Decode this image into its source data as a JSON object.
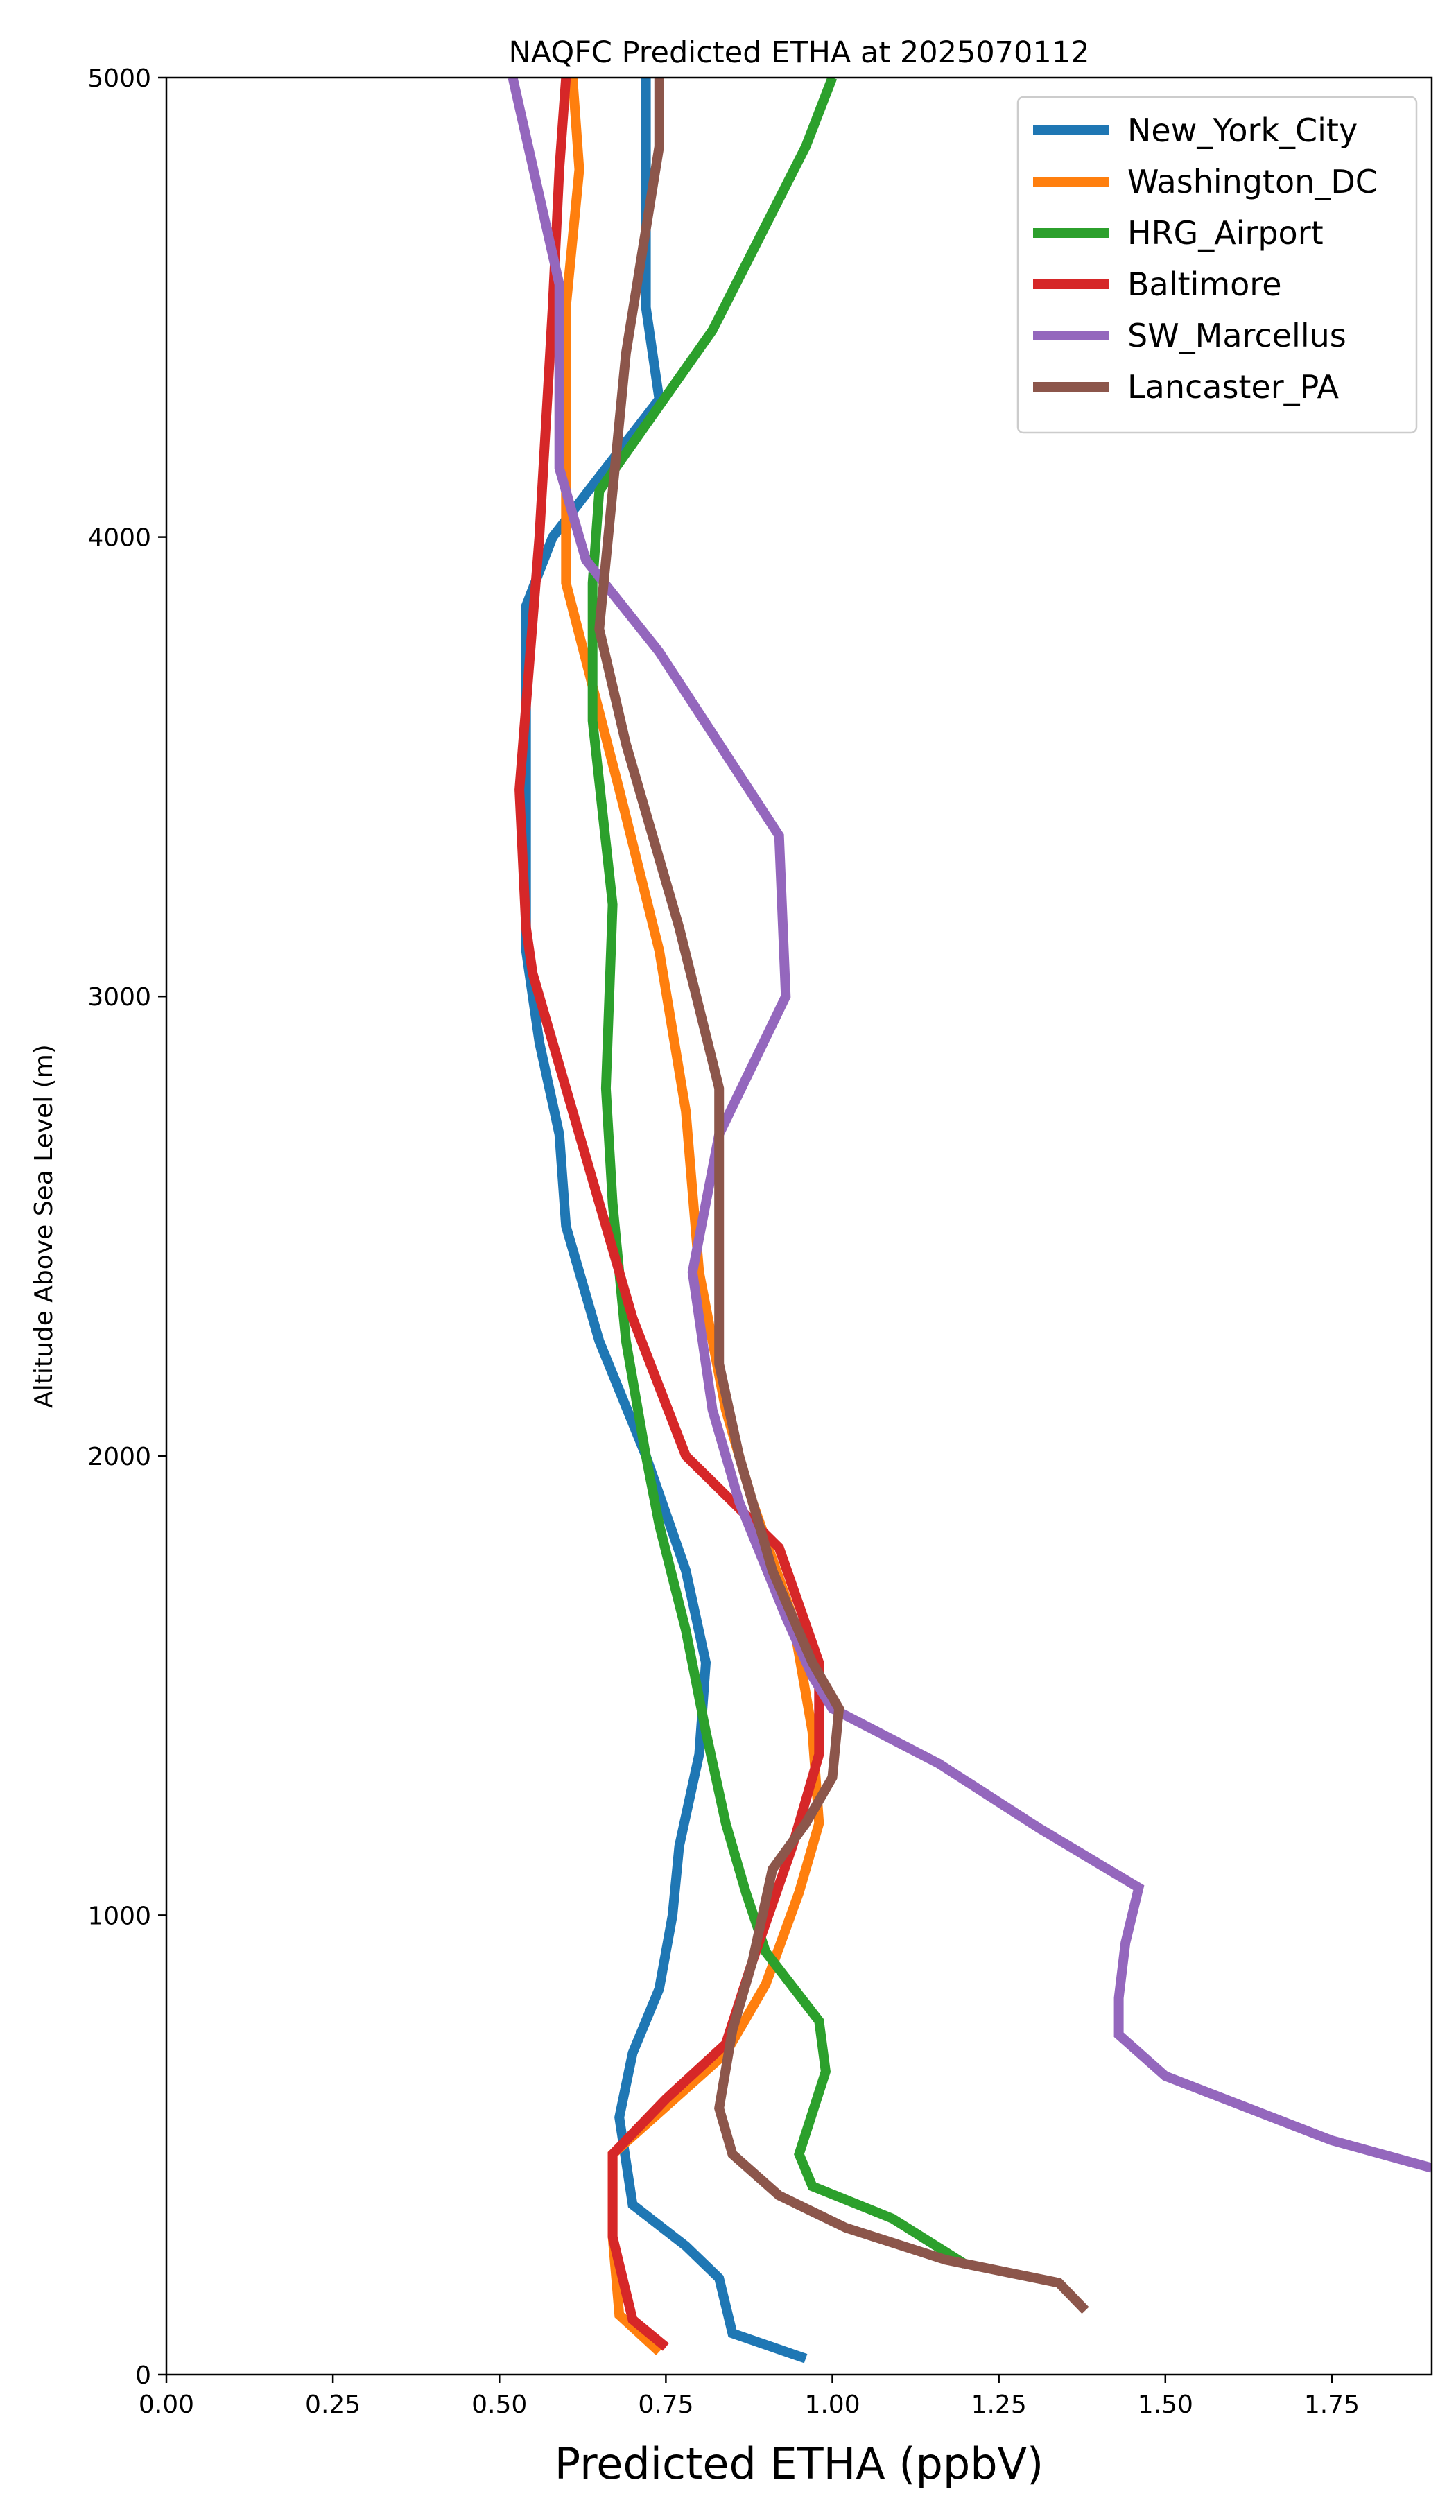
{
  "chart_data": {
    "type": "line",
    "title": "NAQFC Predicted ETHA at 2025070112",
    "xlabel": "Predicted ETHA (ppbV)",
    "ylabel": "Altitude Above Sea Level (m)",
    "xlim": [
      0,
      1.9
    ],
    "ylim": [
      0,
      5000
    ],
    "xticks": [
      "0.00",
      "0.25",
      "0.50",
      "0.75",
      "1.00",
      "1.25",
      "1.50",
      "1.75"
    ],
    "yticks": [
      "0",
      "1000",
      "2000",
      "3000",
      "4000",
      "5000"
    ],
    "grid": false,
    "legend_position": "top-right",
    "series": [
      {
        "name": "New_York_City",
        "color": "#1f77b4",
        "points": [
          [
            0.96,
            35
          ],
          [
            0.85,
            90
          ],
          [
            0.83,
            210
          ],
          [
            0.78,
            280
          ],
          [
            0.7,
            370
          ],
          [
            0.68,
            560
          ],
          [
            0.7,
            700
          ],
          [
            0.74,
            840
          ],
          [
            0.76,
            1000
          ],
          [
            0.77,
            1150
          ],
          [
            0.8,
            1350
          ],
          [
            0.81,
            1550
          ],
          [
            0.78,
            1750
          ],
          [
            0.72,
            2000
          ],
          [
            0.65,
            2250
          ],
          [
            0.6,
            2500
          ],
          [
            0.59,
            2700
          ],
          [
            0.56,
            2900
          ],
          [
            0.54,
            3100
          ],
          [
            0.54,
            3400
          ],
          [
            0.54,
            3850
          ],
          [
            0.58,
            4000
          ],
          [
            0.74,
            4300
          ],
          [
            0.72,
            4500
          ],
          [
            0.72,
            4800
          ],
          [
            0.72,
            5000
          ]
        ]
      },
      {
        "name": "Washington_DC",
        "color": "#ff7f0e",
        "points": [
          [
            0.74,
            50
          ],
          [
            0.68,
            130
          ],
          [
            0.67,
            300
          ],
          [
            0.67,
            480
          ],
          [
            0.84,
            700
          ],
          [
            0.9,
            850
          ],
          [
            0.95,
            1050
          ],
          [
            0.98,
            1200
          ],
          [
            0.97,
            1400
          ],
          [
            0.94,
            1650
          ],
          [
            0.88,
            1900
          ],
          [
            0.84,
            2100
          ],
          [
            0.8,
            2400
          ],
          [
            0.78,
            2750
          ],
          [
            0.74,
            3100
          ],
          [
            0.68,
            3450
          ],
          [
            0.6,
            3900
          ],
          [
            0.6,
            4100
          ],
          [
            0.6,
            4500
          ],
          [
            0.62,
            4800
          ],
          [
            0.61,
            5000
          ]
        ]
      },
      {
        "name": "HRG_Airport",
        "color": "#2ca02c",
        "points": [
          [
            1.2,
            240
          ],
          [
            1.09,
            340
          ],
          [
            0.97,
            410
          ],
          [
            0.95,
            480
          ],
          [
            0.99,
            660
          ],
          [
            0.98,
            770
          ],
          [
            0.9,
            920
          ],
          [
            0.87,
            1050
          ],
          [
            0.84,
            1200
          ],
          [
            0.81,
            1400
          ],
          [
            0.78,
            1620
          ],
          [
            0.74,
            1850
          ],
          [
            0.72,
            2000
          ],
          [
            0.69,
            2250
          ],
          [
            0.67,
            2550
          ],
          [
            0.66,
            2800
          ],
          [
            0.67,
            3200
          ],
          [
            0.64,
            3600
          ],
          [
            0.64,
            3900
          ],
          [
            0.65,
            4100
          ],
          [
            0.82,
            4450
          ],
          [
            0.96,
            4850
          ],
          [
            1.0,
            5000
          ]
        ]
      },
      {
        "name": "Baltimore",
        "color": "#d62728",
        "points": [
          [
            0.75,
            60
          ],
          [
            0.7,
            120
          ],
          [
            0.67,
            300
          ],
          [
            0.67,
            480
          ],
          [
            0.75,
            600
          ],
          [
            0.84,
            720
          ],
          [
            0.88,
            900
          ],
          [
            0.94,
            1150
          ],
          [
            0.98,
            1350
          ],
          [
            0.98,
            1550
          ],
          [
            0.92,
            1800
          ],
          [
            0.78,
            2000
          ],
          [
            0.7,
            2300
          ],
          [
            0.62,
            2700
          ],
          [
            0.55,
            3050
          ],
          [
            0.54,
            3150
          ],
          [
            0.53,
            3450
          ],
          [
            0.56,
            4000
          ],
          [
            0.58,
            4500
          ],
          [
            0.59,
            4800
          ],
          [
            0.6,
            5000
          ]
        ]
      },
      {
        "name": "SW_Marcellus",
        "color": "#9467bd",
        "points": [
          [
            1.9,
            450
          ],
          [
            1.75,
            510
          ],
          [
            1.5,
            650
          ],
          [
            1.43,
            740
          ],
          [
            1.43,
            820
          ],
          [
            1.44,
            940
          ],
          [
            1.46,
            1060
          ],
          [
            1.31,
            1190
          ],
          [
            1.16,
            1330
          ],
          [
            1.0,
            1450
          ],
          [
            0.97,
            1520
          ],
          [
            0.93,
            1650
          ],
          [
            0.86,
            1900
          ],
          [
            0.82,
            2100
          ],
          [
            0.79,
            2400
          ],
          [
            0.83,
            2700
          ],
          [
            0.93,
            3000
          ],
          [
            0.92,
            3350
          ],
          [
            0.74,
            3750
          ],
          [
            0.63,
            3950
          ],
          [
            0.59,
            4150
          ],
          [
            0.59,
            4550
          ],
          [
            0.52,
            5000
          ]
        ]
      },
      {
        "name": "Lancaster_PA",
        "color": "#8c564b",
        "points": [
          [
            1.38,
            140
          ],
          [
            1.34,
            200
          ],
          [
            1.17,
            250
          ],
          [
            1.02,
            320
          ],
          [
            0.92,
            390
          ],
          [
            0.85,
            480
          ],
          [
            0.83,
            580
          ],
          [
            0.85,
            750
          ],
          [
            0.88,
            900
          ],
          [
            0.91,
            1100
          ],
          [
            0.96,
            1200
          ],
          [
            1.0,
            1300
          ],
          [
            1.01,
            1450
          ],
          [
            0.97,
            1550
          ],
          [
            0.91,
            1750
          ],
          [
            0.86,
            2000
          ],
          [
            0.83,
            2200
          ],
          [
            0.83,
            2500
          ],
          [
            0.83,
            2800
          ],
          [
            0.77,
            3150
          ],
          [
            0.69,
            3550
          ],
          [
            0.65,
            3800
          ],
          [
            0.67,
            4100
          ],
          [
            0.69,
            4400
          ],
          [
            0.74,
            4850
          ],
          [
            0.74,
            5000
          ]
        ]
      }
    ]
  }
}
